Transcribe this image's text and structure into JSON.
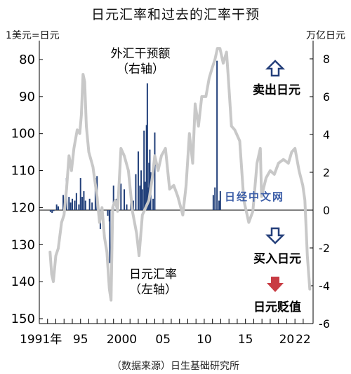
{
  "title": "日元汇率和过去的汇率干预",
  "left_unit": "1美元=日元",
  "right_unit": "万亿日元",
  "source": "（数据来源）日生基础研究所",
  "watermark": "日经中文网",
  "colors": {
    "line": "#c8c8c8",
    "bar": "#22407a",
    "arrow_blue": "#243f7a",
    "arrow_red": "#c83c43",
    "axis": "#000000"
  },
  "chart_data": {
    "type": "bar+line",
    "title": "日元汇率和过去的汇率干预",
    "y_left": {
      "label": "1美元=日元",
      "range": [
        150,
        75
      ],
      "ticks": [
        80,
        90,
        100,
        110,
        120,
        130,
        140,
        150
      ],
      "inverted": true
    },
    "y_right": {
      "label": "万亿日元",
      "range": [
        -6,
        8.6
      ],
      "ticks": [
        8,
        6,
        4,
        2,
        0,
        -2,
        -4,
        -6
      ]
    },
    "x_ticks": [
      "1991年",
      "95",
      "2000",
      "05",
      "10",
      "15",
      "20",
      "22"
    ],
    "x_tick_years": [
      1991,
      1995,
      2000,
      2005,
      2010,
      2015,
      2020,
      2022
    ],
    "x_range": [
      1990.0,
      2023.2
    ],
    "annotations": [
      {
        "id": "intervention",
        "text_lines": [
          "外汇干预额",
          "（右轴）"
        ]
      },
      {
        "id": "yen-rate",
        "text_lines": [
          "日元汇率",
          "（左轴）"
        ]
      },
      {
        "id": "sell-yen",
        "text": "卖出日元",
        "icon": "up-arrow-outline"
      },
      {
        "id": "buy-yen",
        "text": "买入日元",
        "icon": "down-arrow-outline"
      },
      {
        "id": "yen-depreciation",
        "text": "日元贬值",
        "icon": "down-arrow-red"
      }
    ],
    "series": [
      {
        "name": "日元汇率",
        "axis": "left",
        "style": "line",
        "points": [
          [
            1991.3,
            132
          ],
          [
            1991.5,
            138
          ],
          [
            1991.7,
            140
          ],
          [
            1992.0,
            133
          ],
          [
            1992.3,
            131
          ],
          [
            1992.7,
            124
          ],
          [
            1993.0,
            122
          ],
          [
            1993.3,
            115
          ],
          [
            1993.6,
            106
          ],
          [
            1993.9,
            110
          ],
          [
            1994.2,
            104
          ],
          [
            1994.6,
            99
          ],
          [
            1994.9,
            100
          ],
          [
            1995.1,
            95
          ],
          [
            1995.3,
            84
          ],
          [
            1995.5,
            86
          ],
          [
            1995.7,
            98
          ],
          [
            1996.0,
            105
          ],
          [
            1996.5,
            109
          ],
          [
            1997.0,
            117
          ],
          [
            1997.3,
            124
          ],
          [
            1997.6,
            120
          ],
          [
            1997.9,
            128
          ],
          [
            1998.2,
            132
          ],
          [
            1998.5,
            142
          ],
          [
            1998.7,
            145
          ],
          [
            1998.9,
            120
          ],
          [
            1999.2,
            118
          ],
          [
            1999.5,
            121
          ],
          [
            1999.9,
            104
          ],
          [
            2000.3,
            106
          ],
          [
            2000.8,
            110
          ],
          [
            2001.3,
            121
          ],
          [
            2001.8,
            127
          ],
          [
            2002.1,
            133
          ],
          [
            2002.5,
            122
          ],
          [
            2002.9,
            120
          ],
          [
            2003.3,
            118
          ],
          [
            2003.7,
            112
          ],
          [
            2004.0,
            106
          ],
          [
            2004.4,
            110
          ],
          [
            2004.8,
            106
          ],
          [
            2005.3,
            104
          ],
          [
            2005.8,
            115
          ],
          [
            2006.3,
            114
          ],
          [
            2006.8,
            117
          ],
          [
            2007.4,
            122
          ],
          [
            2007.8,
            114
          ],
          [
            2008.2,
            100
          ],
          [
            2008.6,
            108
          ],
          [
            2008.9,
            92
          ],
          [
            2009.3,
            98
          ],
          [
            2009.7,
            90
          ],
          [
            2010.2,
            90
          ],
          [
            2010.6,
            85
          ],
          [
            2011.0,
            82
          ],
          [
            2011.3,
            80
          ],
          [
            2011.6,
            77
          ],
          [
            2011.9,
            77
          ],
          [
            2012.3,
            81
          ],
          [
            2012.7,
            78
          ],
          [
            2012.95,
            86
          ],
          [
            2013.3,
            98
          ],
          [
            2013.7,
            99
          ],
          [
            2014.3,
            102
          ],
          [
            2014.8,
            118
          ],
          [
            2015.4,
            124
          ],
          [
            2015.9,
            121
          ],
          [
            2016.4,
            108
          ],
          [
            2016.8,
            104
          ],
          [
            2016.95,
            117
          ],
          [
            2017.5,
            112
          ],
          [
            2018.0,
            110
          ],
          [
            2018.5,
            111
          ],
          [
            2019.0,
            108
          ],
          [
            2019.6,
            107
          ],
          [
            2020.2,
            108
          ],
          [
            2020.6,
            105
          ],
          [
            2021.0,
            104
          ],
          [
            2021.5,
            110
          ],
          [
            2021.95,
            114
          ],
          [
            2022.2,
            118
          ],
          [
            2022.5,
            133
          ],
          [
            2022.8,
            142
          ]
        ]
      },
      {
        "name": "外汇干预额",
        "axis": "right",
        "style": "bar",
        "points": [
          [
            1991.35,
            -0.1
          ],
          [
            1991.55,
            -0.15
          ],
          [
            1991.75,
            -0.05
          ],
          [
            1992.1,
            0.3
          ],
          [
            1992.3,
            0.2
          ],
          [
            1992.9,
            0.8
          ],
          [
            1993.1,
            0.4
          ],
          [
            1993.3,
            1.7
          ],
          [
            1993.6,
            0.7
          ],
          [
            1993.8,
            0.4
          ],
          [
            1994.0,
            0.6
          ],
          [
            1994.3,
            0.5
          ],
          [
            1994.5,
            0.9
          ],
          [
            1994.8,
            0.3
          ],
          [
            1995.0,
            1.7
          ],
          [
            1995.2,
            0.7
          ],
          [
            1995.4,
            1.0
          ],
          [
            1995.6,
            0.5
          ],
          [
            1996.1,
            0.6
          ],
          [
            1996.4,
            0.4
          ],
          [
            1996.8,
            1.7
          ],
          [
            1997.0,
            1.8
          ],
          [
            1997.4,
            -1.0
          ],
          [
            1998.3,
            -0.3
          ],
          [
            1998.5,
            -0.6
          ],
          [
            1998.55,
            -2.8
          ],
          [
            1999.0,
            1.3
          ],
          [
            1999.4,
            0.6
          ],
          [
            1999.9,
            1.4
          ],
          [
            2000.3,
            1.1
          ],
          [
            2000.6,
            0.3
          ],
          [
            2001.1,
            0.4
          ],
          [
            2001.4,
            0.5
          ],
          [
            2001.7,
            1.9
          ],
          [
            2002.0,
            3.1
          ],
          [
            2002.2,
            1.3
          ],
          [
            2002.35,
            2.1
          ],
          [
            2002.5,
            1.1
          ],
          [
            2002.7,
            4.2
          ],
          [
            2002.85,
            1.5
          ],
          [
            2003.0,
            4.5
          ],
          [
            2003.1,
            6.7
          ],
          [
            2003.2,
            1.2
          ],
          [
            2003.3,
            2.5
          ],
          [
            2003.4,
            3.2
          ],
          [
            2003.5,
            2.0
          ],
          [
            2003.8,
            0.6
          ],
          [
            2004.0,
            4.1
          ],
          [
            2011.1,
            0.8
          ],
          [
            2011.3,
            1.2
          ],
          [
            2011.55,
            7.9
          ],
          [
            2011.8,
            0.5
          ],
          [
            2011.95,
            1.0
          ]
        ]
      }
    ]
  }
}
